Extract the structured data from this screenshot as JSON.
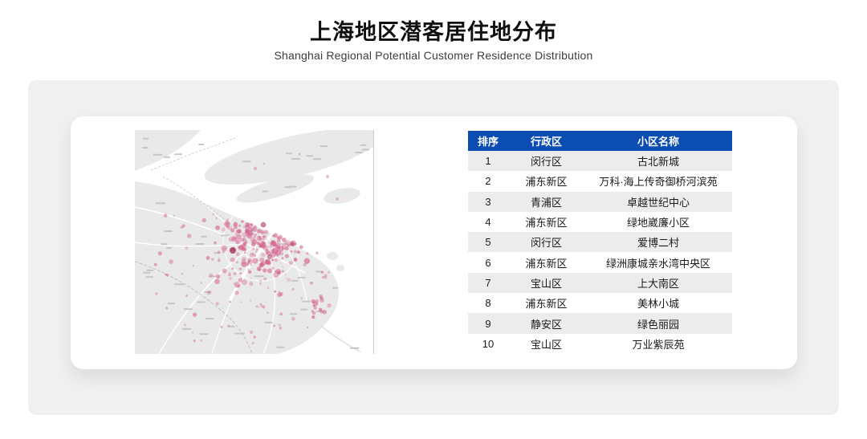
{
  "header": {
    "title": "上海地区潜客居住地分布",
    "subtitle": "Shanghai Regional Potential Customer Residence Distribution"
  },
  "map": {
    "name": "shanghai-potential-customer-scatter-map",
    "region": "上海",
    "description": "灰色底图上的粉色散点，集中于上海中心城区"
  },
  "chart_data": [
    {
      "type": "scatter",
      "subtype": "map-density-scatter",
      "title": "上海地区潜客居住地分布",
      "region": "Shanghai",
      "legend_position": "none",
      "notes": "pink dots denote potential customer residences, densest in central Shanghai"
    },
    {
      "type": "table",
      "columns": [
        "排序",
        "行政区",
        "小区名称"
      ],
      "rows": [
        [
          "1",
          "闵行区",
          "古北新城"
        ],
        [
          "2",
          "浦东新区",
          "万科·海上传奇御桥河滨苑"
        ],
        [
          "3",
          "青浦区",
          "卓越世纪中心"
        ],
        [
          "4",
          "浦东新区",
          "绿地崴廉小区"
        ],
        [
          "5",
          "闵行区",
          "爱博二村"
        ],
        [
          "6",
          "浦东新区",
          "绿洲康城亲水湾中央区"
        ],
        [
          "7",
          "宝山区",
          "上大南区"
        ],
        [
          "8",
          "浦东新区",
          "美林小城"
        ],
        [
          "9",
          "静安区",
          "绿色丽园"
        ],
        [
          "10",
          "宝山区",
          "万业紫辰苑"
        ]
      ]
    }
  ],
  "colors": {
    "title_text": "#101010",
    "subtitle_text": "#3c3c3c",
    "panel_bg": "#f0f0f0",
    "card_bg": "#ffffff",
    "table_header_bg": "#0b4db3",
    "table_header_text": "#ffffff",
    "table_alt_row_bg": "#ececec",
    "table_text": "#1b1b1b",
    "map_land": "#e9e9e9",
    "map_water": "#ffffff",
    "map_road": "#ffffff",
    "map_label": "#c0c0c0",
    "map_line": "#cccccc",
    "dot": "#d4618c",
    "dot_dark": "#a63156"
  }
}
